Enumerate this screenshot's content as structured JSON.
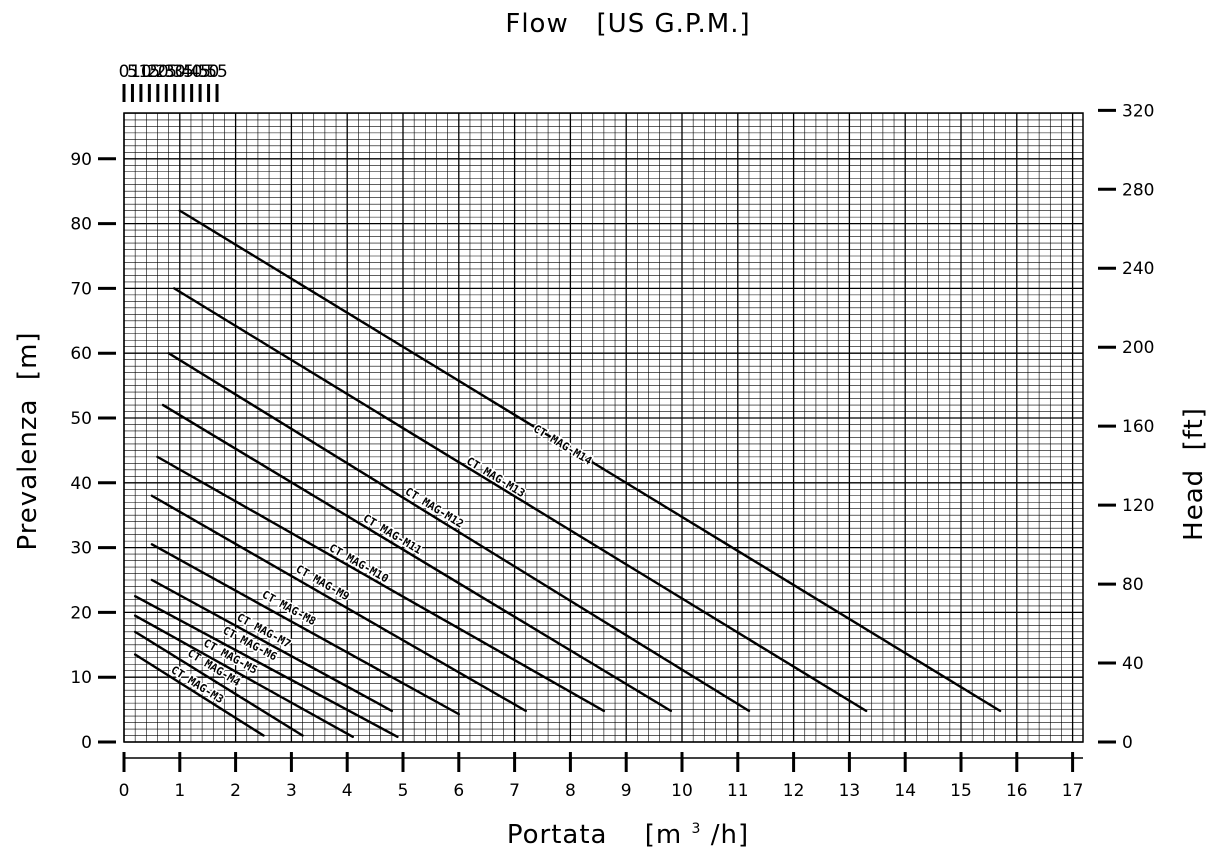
{
  "chart_data": {
    "type": "line",
    "title": "",
    "x_axis_bottom": {
      "label_main": "Portata",
      "label_unit_prefix": "[m",
      "label_unit_sup": "3",
      "label_unit_suffix": "/h]",
      "range": [
        0,
        17.2
      ],
      "ticks": [
        0,
        1,
        2,
        3,
        4,
        5,
        6,
        7,
        8,
        9,
        10,
        11,
        12,
        13,
        14,
        15,
        16,
        17
      ],
      "tick_labels": [
        "0",
        "1",
        "2",
        "3",
        "4",
        "5",
        "6",
        "7",
        "8",
        "9",
        "10",
        "11",
        "12",
        "13",
        "14",
        "15",
        "16",
        "17"
      ]
    },
    "x_axis_top": {
      "label": "Flow   [US G.P.M.]",
      "ticks": [
        0,
        5,
        10,
        15,
        20,
        25,
        30,
        35,
        40,
        45,
        50,
        55
      ],
      "tick_labels": [
        "0",
        "5",
        "10",
        "15",
        "20",
        "25",
        "30",
        "35",
        "40",
        "45",
        "50",
        "55"
      ]
    },
    "y_axis_left": {
      "label": "Prevalenza  [m]",
      "range": [
        0,
        97
      ],
      "ticks": [
        0,
        10,
        20,
        30,
        40,
        50,
        60,
        70,
        80,
        90
      ],
      "tick_labels": [
        "0",
        "10",
        "20",
        "30",
        "40",
        "50",
        "60",
        "70",
        "80",
        "90"
      ]
    },
    "y_axis_right": {
      "label": "Head  [ft]",
      "ticks": [
        0,
        40,
        80,
        120,
        160,
        200,
        240,
        280,
        320
      ],
      "tick_labels": [
        "0",
        "40",
        "80",
        "120",
        "160",
        "200",
        "240",
        "280",
        "320"
      ]
    },
    "grid": true,
    "series": [
      {
        "name": "CT MAG-M3",
        "x": [
          0.2,
          2.5
        ],
        "y": [
          13.5,
          1
        ],
        "label_at": [
          1.25,
          8.0
        ]
      },
      {
        "name": "CT MAG-M4",
        "x": [
          0.2,
          3.2
        ],
        "y": [
          17,
          1
        ],
        "label_at": [
          1.55,
          10.6
        ]
      },
      {
        "name": "CT MAG-M5",
        "x": [
          0.2,
          4.1
        ],
        "y": [
          19.5,
          0.8
        ],
        "label_at": [
          1.85,
          12.3
        ]
      },
      {
        "name": "CT MAG-M6",
        "x": [
          0.2,
          4.9
        ],
        "y": [
          22.5,
          0.8
        ],
        "label_at": [
          2.2,
          14.3
        ]
      },
      {
        "name": "CT MAG-M7",
        "x": [
          0.5,
          4.8
        ],
        "y": [
          25,
          4.8
        ],
        "label_at": [
          2.45,
          16.3
        ]
      },
      {
        "name": "CT MAG-M8",
        "x": [
          0.5,
          6.0
        ],
        "y": [
          30.5,
          4.3
        ],
        "label_at": [
          2.9,
          19.8
        ]
      },
      {
        "name": "CT MAG-M9",
        "x": [
          0.5,
          7.2
        ],
        "y": [
          38,
          4.8
        ],
        "label_at": [
          3.5,
          23.7
        ]
      },
      {
        "name": "CT MAG-M10",
        "x": [
          0.6,
          8.6
        ],
        "y": [
          44,
          4.8
        ],
        "label_at": [
          4.15,
          26.7
        ]
      },
      {
        "name": "CT MAG-M11",
        "x": [
          0.7,
          9.8
        ],
        "y": [
          52,
          4.8
        ],
        "label_at": [
          4.75,
          31.2
        ]
      },
      {
        "name": "CT MAG-M12",
        "x": [
          0.8,
          11.2
        ],
        "y": [
          60,
          4.8
        ],
        "label_at": [
          5.5,
          35.3
        ]
      },
      {
        "name": "CT MAG-M13",
        "x": [
          0.9,
          13.3
        ],
        "y": [
          70,
          4.8
        ],
        "label_at": [
          6.6,
          40.0
        ]
      },
      {
        "name": "CT MAG-M14",
        "x": [
          1.0,
          15.7
        ],
        "y": [
          82,
          4.8
        ],
        "label_at": [
          7.8,
          45.0
        ]
      }
    ]
  }
}
